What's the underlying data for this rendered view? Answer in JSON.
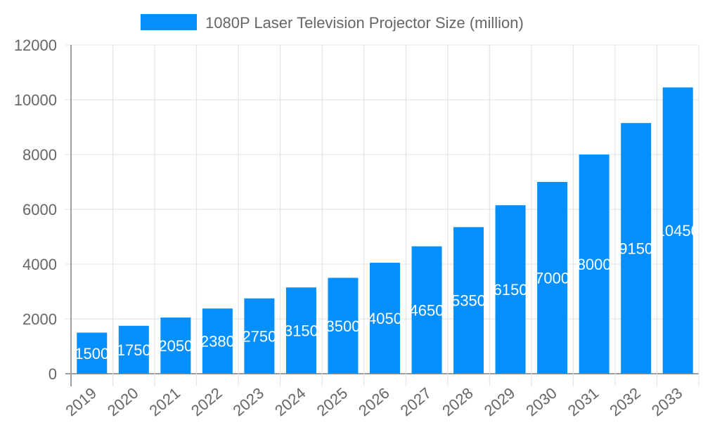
{
  "chart_data": {
    "type": "bar",
    "title": "",
    "xlabel": "",
    "ylabel": "",
    "categories": [
      "2019",
      "2020",
      "2021",
      "2022",
      "2023",
      "2024",
      "2025",
      "2026",
      "2027",
      "2028",
      "2029",
      "2030",
      "2031",
      "2032",
      "2033"
    ],
    "series": [
      {
        "name": "1080P Laser Television Projector Size (million)",
        "values": [
          1500,
          1750,
          2050,
          2380,
          2750,
          3150,
          3500,
          4050,
          4650,
          5350,
          6150,
          7000,
          8000,
          9150,
          10450
        ]
      }
    ],
    "ylim": [
      0,
      12000
    ],
    "yticks": [
      0,
      2000,
      4000,
      6000,
      8000,
      10000,
      12000
    ],
    "grid": true,
    "legend": "top",
    "data_labels": "inside-center",
    "colors": {
      "bar": "#038ffd",
      "label": "#ffffff",
      "grid": "#e0e0e0",
      "axis": "#9e9e9e",
      "text": "#666666"
    }
  }
}
